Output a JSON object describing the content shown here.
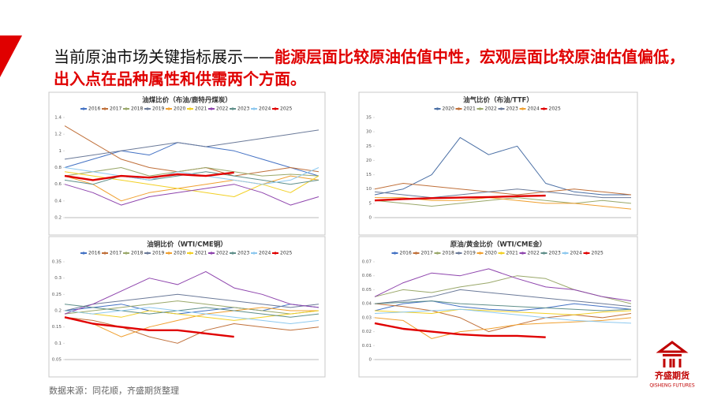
{
  "header": {
    "title_black": "当前原油市场关键指标展示——",
    "title_red": "能源层面比较原油估值中性，宏观层面比较原油估值偏低，出入点在品种属性和供需两个方面。"
  },
  "chart_data": [
    {
      "type": "line",
      "title": "油煤比价（布油/鹿特丹煤炭）",
      "categories": [
        null,
        null,
        null,
        null,
        null,
        null,
        null,
        null,
        null,
        null
      ],
      "ylim": [
        0.2,
        1.4
      ],
      "yticks": [
        0.2,
        0.4,
        0.6,
        0.8,
        1,
        1.2,
        1.4
      ],
      "grid": false,
      "series": [
        {
          "name": "2016",
          "color": "#4472c4",
          "values": [
            0.8,
            0.9,
            1.0,
            0.95,
            1.1,
            1.05,
            1.0,
            0.9,
            0.8,
            0.7
          ]
        },
        {
          "name": "2017",
          "color": "#c0703a",
          "values": [
            1.3,
            1.1,
            0.9,
            0.8,
            0.75,
            0.8,
            0.7,
            0.75,
            0.8,
            0.75
          ]
        },
        {
          "name": "2018",
          "color": "#9aa86a",
          "values": [
            0.7,
            0.75,
            0.8,
            0.7,
            0.75,
            0.8,
            0.75,
            0.7,
            0.72,
            0.7
          ]
        },
        {
          "name": "2019",
          "color": "#6b7a99",
          "values": [
            0.9,
            0.95,
            1.0,
            1.05,
            1.1,
            1.05,
            1.1,
            1.15,
            1.2,
            1.25
          ]
        },
        {
          "name": "2020",
          "color": "#f0a030",
          "values": [
            0.7,
            0.6,
            0.4,
            0.5,
            0.55,
            0.6,
            0.65,
            0.6,
            0.7,
            0.65
          ]
        },
        {
          "name": "2021",
          "color": "#f2d025",
          "values": [
            0.75,
            0.7,
            0.65,
            0.6,
            0.55,
            0.5,
            0.45,
            0.6,
            0.5,
            0.7
          ]
        },
        {
          "name": "2022",
          "color": "#8e44ad",
          "values": [
            0.6,
            0.5,
            0.35,
            0.45,
            0.5,
            0.55,
            0.6,
            0.5,
            0.35,
            0.45
          ]
        },
        {
          "name": "2023",
          "color": "#5f8f8a",
          "values": [
            0.65,
            0.6,
            0.7,
            0.65,
            0.7,
            0.75,
            0.7,
            0.65,
            0.6,
            0.65
          ]
        },
        {
          "name": "2024",
          "color": "#8ec9ef",
          "values": [
            0.8,
            0.75,
            0.7,
            0.65,
            0.75,
            0.7,
            0.65,
            0.6,
            0.65,
            0.8
          ]
        },
        {
          "name": "2025",
          "color": "#e00000",
          "values": [
            0.7,
            0.65,
            0.7,
            0.68,
            0.72,
            0.7,
            0.74,
            null,
            null,
            null
          ]
        }
      ]
    },
    {
      "type": "line",
      "title": "油气比价（布油/TTF）",
      "categories": [
        null,
        null,
        null,
        null,
        null,
        null,
        null,
        null,
        null,
        null
      ],
      "ylim": [
        0,
        35
      ],
      "yticks": [
        0,
        5,
        10,
        15,
        20,
        25,
        30,
        35
      ],
      "grid": false,
      "series": [
        {
          "name": "2020",
          "color": "#4a6fa5",
          "values": [
            8,
            10,
            15,
            28,
            22,
            25,
            12,
            9,
            8,
            8
          ]
        },
        {
          "name": "2021",
          "color": "#c0703a",
          "values": [
            10,
            12,
            11,
            10,
            9,
            8,
            9,
            10,
            9,
            8
          ]
        },
        {
          "name": "2022",
          "color": "#9aa86a",
          "values": [
            6,
            5,
            4,
            5,
            6,
            7,
            6,
            5,
            6,
            5
          ]
        },
        {
          "name": "2023",
          "color": "#6b7a99",
          "values": [
            9,
            8,
            7,
            8,
            9,
            10,
            9,
            8,
            7,
            7
          ]
        },
        {
          "name": "2024",
          "color": "#f0a030",
          "values": [
            7,
            7,
            6,
            6,
            7,
            6,
            5,
            5,
            4,
            3
          ]
        },
        {
          "name": "2025",
          "color": "#e00000",
          "values": [
            6,
            6.5,
            6.8,
            7,
            7.2,
            7.5,
            7.7,
            null,
            null,
            null
          ]
        }
      ]
    },
    {
      "type": "line",
      "title": "油铜比价（WTI/CME铜）",
      "categories": [
        null,
        null,
        null,
        null,
        null,
        null,
        null,
        null,
        null,
        null
      ],
      "ylim": [
        0.05,
        0.35
      ],
      "yticks": [
        0.05,
        0.1,
        0.15,
        0.2,
        0.25,
        0.3,
        0.35
      ],
      "grid": false,
      "series": [
        {
          "name": "2016",
          "color": "#4472c4",
          "values": [
            0.2,
            0.21,
            0.22,
            0.2,
            0.19,
            0.2,
            0.21,
            0.2,
            0.22,
            0.21
          ]
        },
        {
          "name": "2017",
          "color": "#c0703a",
          "values": [
            0.18,
            0.17,
            0.15,
            0.12,
            0.1,
            0.14,
            0.16,
            0.15,
            0.14,
            0.15
          ]
        },
        {
          "name": "2018",
          "color": "#9aa86a",
          "values": [
            0.19,
            0.2,
            0.21,
            0.22,
            0.23,
            0.22,
            0.21,
            0.2,
            0.19,
            0.2
          ]
        },
        {
          "name": "2019",
          "color": "#6b7a99",
          "values": [
            0.2,
            0.22,
            0.23,
            0.24,
            0.25,
            0.24,
            0.23,
            0.22,
            0.21,
            0.22
          ]
        },
        {
          "name": "2020",
          "color": "#f0a030",
          "values": [
            0.18,
            0.16,
            0.12,
            0.15,
            0.17,
            0.19,
            0.2,
            0.21,
            0.2,
            0.2
          ]
        },
        {
          "name": "2021",
          "color": "#f2d025",
          "values": [
            0.2,
            0.19,
            0.18,
            0.2,
            0.19,
            0.18,
            0.17,
            0.18,
            0.19,
            0.2
          ]
        },
        {
          "name": "2022",
          "color": "#8e44ad",
          "values": [
            0.19,
            0.22,
            0.26,
            0.3,
            0.28,
            0.32,
            0.27,
            0.25,
            0.22,
            0.21
          ]
        },
        {
          "name": "2023",
          "color": "#5f8f8a",
          "values": [
            0.22,
            0.21,
            0.2,
            0.19,
            0.2,
            0.21,
            0.2,
            0.19,
            0.18,
            0.19
          ]
        },
        {
          "name": "2024",
          "color": "#8ec9ef",
          "values": [
            0.2,
            0.19,
            0.2,
            0.21,
            0.2,
            0.19,
            0.18,
            0.17,
            0.16,
            0.17
          ]
        },
        {
          "name": "2025",
          "color": "#e00000",
          "values": [
            0.18,
            0.16,
            0.15,
            0.14,
            0.14,
            0.13,
            0.12,
            null,
            null,
            null
          ]
        }
      ]
    },
    {
      "type": "line",
      "title": "原油/黄金比价（WTI/CME金）",
      "categories": [
        null,
        null,
        null,
        null,
        null,
        null,
        null,
        null,
        null,
        null
      ],
      "ylim": [
        0,
        0.07
      ],
      "yticks": [
        0,
        0.01,
        0.02,
        0.03,
        0.04,
        0.05,
        0.06,
        0.07
      ],
      "grid": false,
      "series": [
        {
          "name": "2016",
          "color": "#4472c4",
          "values": [
            0.035,
            0.04,
            0.042,
            0.038,
            0.036,
            0.035,
            0.037,
            0.04,
            0.038,
            0.036
          ]
        },
        {
          "name": "2017",
          "color": "#c0703a",
          "values": [
            0.04,
            0.038,
            0.035,
            0.03,
            0.02,
            0.025,
            0.03,
            0.032,
            0.03,
            0.033
          ]
        },
        {
          "name": "2018",
          "color": "#9aa86a",
          "values": [
            0.045,
            0.05,
            0.048,
            0.052,
            0.055,
            0.06,
            0.058,
            0.05,
            0.045,
            0.04
          ]
        },
        {
          "name": "2019",
          "color": "#6b7a99",
          "values": [
            0.04,
            0.042,
            0.045,
            0.05,
            0.048,
            0.046,
            0.044,
            0.042,
            0.04,
            0.038
          ]
        },
        {
          "name": "2020",
          "color": "#f0a030",
          "values": [
            0.03,
            0.028,
            0.015,
            0.02,
            0.022,
            0.025,
            0.026,
            0.027,
            0.028,
            0.03
          ]
        },
        {
          "name": "2021",
          "color": "#f2d025",
          "values": [
            0.035,
            0.034,
            0.033,
            0.036,
            0.035,
            0.034,
            0.033,
            0.032,
            0.034,
            0.035
          ]
        },
        {
          "name": "2022",
          "color": "#8e44ad",
          "values": [
            0.045,
            0.055,
            0.062,
            0.06,
            0.065,
            0.058,
            0.052,
            0.05,
            0.045,
            0.042
          ]
        },
        {
          "name": "2023",
          "color": "#5f8f8a",
          "values": [
            0.04,
            0.041,
            0.042,
            0.04,
            0.039,
            0.038,
            0.037,
            0.036,
            0.035,
            0.036
          ]
        },
        {
          "name": "2024",
          "color": "#8ec9ef",
          "values": [
            0.033,
            0.034,
            0.035,
            0.036,
            0.034,
            0.032,
            0.03,
            0.028,
            0.027,
            0.026
          ]
        },
        {
          "name": "2025",
          "color": "#e00000",
          "values": [
            0.026,
            0.022,
            0.02,
            0.018,
            0.017,
            0.017,
            0.016,
            null,
            null,
            null
          ]
        }
      ]
    }
  ],
  "footer": {
    "source": "数据来源：同花顺，齐盛期货整理"
  },
  "logo": {
    "name": "齐盛期货",
    "english": "QISHENG FUTURES"
  }
}
